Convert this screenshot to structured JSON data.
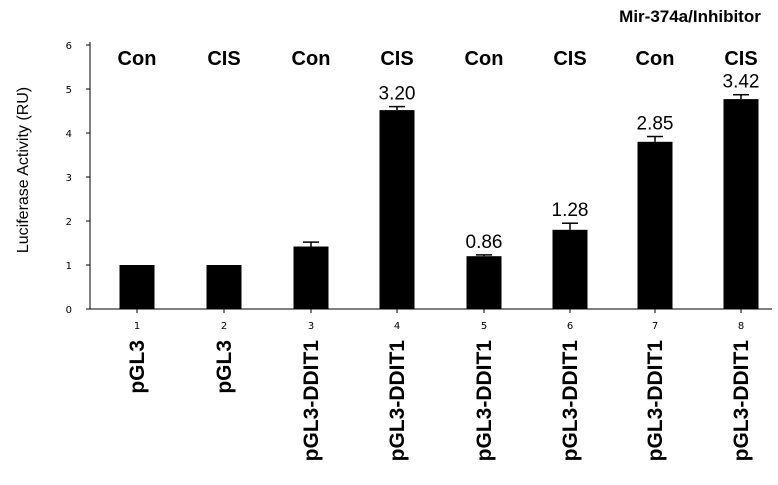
{
  "chart_data": {
    "type": "bar",
    "title": "",
    "header": "Mir-374a/Inhibitor",
    "ylabel": "Luciferase Activity (RU)",
    "xlabel": "",
    "ylim": [
      0,
      6
    ],
    "yticks": [
      "0",
      "1",
      "2",
      "3",
      "4",
      "5",
      "6"
    ],
    "categories": [
      "1",
      "2",
      "3",
      "4",
      "5",
      "6",
      "7",
      "8"
    ],
    "constructs": [
      "pGL3",
      "pGL3",
      "pGL3-DDIT1",
      "pGL3-DDIT1",
      "pGL3-DDIT1",
      "pGL3-DDIT1",
      "pGL3-DDIT1",
      "pGL3-DDIT1"
    ],
    "treatments": [
      "Con",
      "CIS",
      "Con",
      "CIS",
      "Con",
      "CIS",
      "Con",
      "CIS"
    ],
    "values": [
      1.0,
      1.0,
      1.42,
      4.52,
      1.2,
      1.8,
      3.8,
      4.77
    ],
    "errors": [
      0,
      0,
      0.1,
      0.08,
      0.03,
      0.15,
      0.12,
      0.1
    ],
    "value_labels": [
      "",
      "",
      "",
      "3.20",
      "0.86",
      "1.28",
      "2.85",
      "3.42"
    ],
    "bar_color": "#000000",
    "grid": false,
    "legend": "none"
  }
}
